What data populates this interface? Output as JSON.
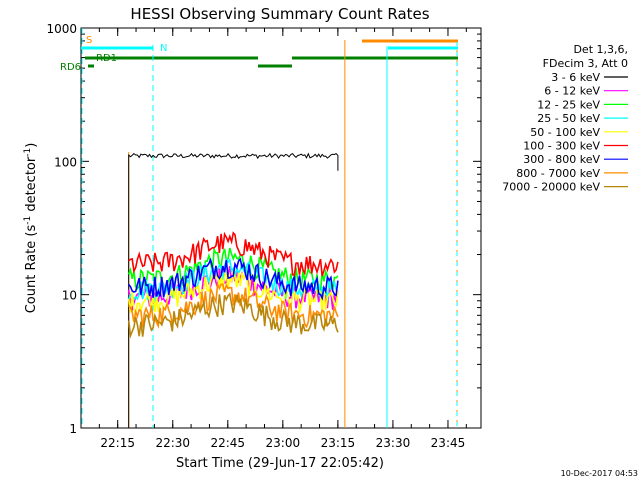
{
  "chart_data": {
    "type": "line",
    "title": "HESSI Observing Summary Count Rates",
    "xlabel": "Start Time (29-Jun-17 22:05:42)",
    "ylabel_main": "Count Rate (s",
    "ylabel_sup1": "-1",
    "ylabel_mid": " detector",
    "ylabel_sup2": "-1",
    "ylabel_end": ")",
    "yscale": "log",
    "ylim": [
      1,
      1000
    ],
    "xlim_minutes": [
      22.0833,
      23.9
    ],
    "x_ticks": [
      "22:15",
      "22:30",
      "22:45",
      "23:00",
      "23:15",
      "23:30",
      "23:45"
    ],
    "x_tick_minutes": [
      22.25,
      22.5,
      22.75,
      23.0,
      23.25,
      23.5,
      23.75
    ],
    "y_ticks": [
      "1",
      "10",
      "100",
      "1000"
    ],
    "y_tick_values": [
      1,
      10,
      100,
      1000
    ],
    "data_window": [
      22.3,
      23.25
    ],
    "legend_header": [
      "Det 1,3,6,",
      "FDecim 3, Att 0"
    ],
    "series": [
      {
        "name": "3 - 6 keV",
        "color": "#000000",
        "level": 110
      },
      {
        "name": "6 - 12 keV",
        "color": "#ff00ff",
        "level": 9.5
      },
      {
        "name": "12 - 25 keV",
        "color": "#00ff00",
        "level": 13
      },
      {
        "name": "25 - 50 keV",
        "color": "#00ffff",
        "level": 11
      },
      {
        "name": "50 - 100 keV",
        "color": "#ffff00",
        "level": 9
      },
      {
        "name": "100 - 300 keV",
        "color": "#ff0000",
        "level": 17
      },
      {
        "name": "300 - 800 keV",
        "color": "#0000ff",
        "level": 11.5
      },
      {
        "name": "800 - 7000 keV",
        "color": "#ff8c00",
        "level": 7
      },
      {
        "name": "7000 - 20000 keV",
        "color": "#b8860b",
        "level": 6
      }
    ],
    "flags": [
      {
        "name": "S",
        "color": "#ff8c00",
        "label_pos": "left-top"
      },
      {
        "name": "N",
        "color": "#00ffff",
        "label_pos": "top"
      },
      {
        "name": "RD1",
        "color": "#008000",
        "label_pos": "left"
      },
      {
        "name": "RD6",
        "color": "#008000",
        "label_pos": "left"
      }
    ],
    "footer": "10-Dec-2017 04:53"
  }
}
